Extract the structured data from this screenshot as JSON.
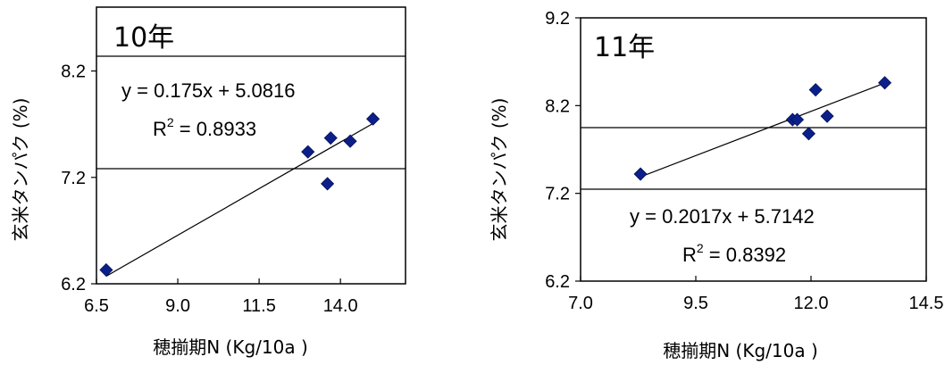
{
  "chart_data": [
    {
      "type": "scatter",
      "year_label": "10年",
      "xlabel": "穂揃期N (Kg/10a )",
      "ylabel": "玄米タンパク (%)",
      "xlim": [
        6.5,
        16.0
      ],
      "ylim": [
        6.2,
        8.8
      ],
      "x_ticks": [
        "6.5",
        "9.0",
        "11.5",
        "14.0"
      ],
      "x_tick_values": [
        6.5,
        9.0,
        11.5,
        14.0
      ],
      "y_ticks": [
        "6.2",
        "7.2",
        "8.2"
      ],
      "y_tick_values": [
        6.2,
        7.2,
        8.2
      ],
      "points": [
        {
          "x": 6.8,
          "y": 6.33
        },
        {
          "x": 13.0,
          "y": 7.44
        },
        {
          "x": 13.6,
          "y": 7.14
        },
        {
          "x": 13.7,
          "y": 7.57
        },
        {
          "x": 14.3,
          "y": 7.54
        },
        {
          "x": 15.0,
          "y": 7.75
        }
      ],
      "trendline": {
        "slope": 0.175,
        "intercept": 5.0816,
        "x_range": [
          6.8,
          15.0
        ]
      },
      "equation": "y = 0.175x + 5.0816",
      "r2_label": "R",
      "r2_sup": "2",
      "r2_value": " = 0.8933"
    },
    {
      "type": "scatter",
      "year_label": "11年",
      "xlabel": "穂揃期N (Kg/10a )",
      "ylabel": "玄米タンパク (%)",
      "xlim": [
        7.0,
        14.5
      ],
      "ylim": [
        6.2,
        9.2
      ],
      "x_ticks": [
        "7.0",
        "9.5",
        "12.0",
        "14.5"
      ],
      "x_tick_values": [
        7.0,
        9.5,
        12.0,
        14.5
      ],
      "y_ticks": [
        "6.2",
        "7.2",
        "8.2",
        "9.2"
      ],
      "y_tick_values": [
        6.2,
        7.2,
        8.2,
        9.2
      ],
      "points": [
        {
          "x": 8.3,
          "y": 7.42
        },
        {
          "x": 11.6,
          "y": 8.04
        },
        {
          "x": 11.7,
          "y": 8.04
        },
        {
          "x": 11.95,
          "y": 7.88
        },
        {
          "x": 12.1,
          "y": 8.38
        },
        {
          "x": 12.35,
          "y": 8.08
        },
        {
          "x": 13.6,
          "y": 8.46
        }
      ],
      "trendline": {
        "slope": 0.2017,
        "intercept": 5.7142,
        "x_range": [
          8.3,
          13.6
        ]
      },
      "equation": "y = 0.2017x + 5.7142",
      "r2_label": "R",
      "r2_sup": "2",
      "r2_value": " = 0.8392"
    }
  ]
}
